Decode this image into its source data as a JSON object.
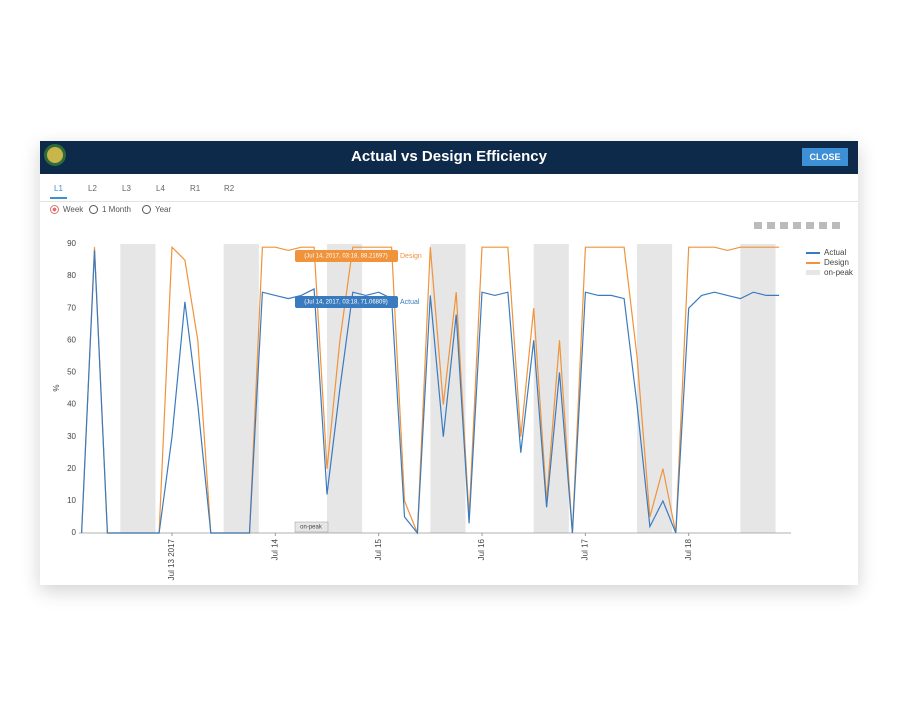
{
  "header": {
    "title": "Actual vs Design Efficiency",
    "close": "CLOSE"
  },
  "tabs": [
    "L1",
    "L2",
    "L3",
    "L4",
    "R1",
    "R2"
  ],
  "ranges": [
    "Week",
    "1 Month",
    "Year"
  ],
  "chart_data": {
    "type": "line",
    "y_label": "%",
    "x": [
      12.125,
      12.25,
      12.375,
      12.5,
      12.625,
      12.75,
      12.875,
      13.0,
      13.125,
      13.25,
      13.375,
      13.5,
      13.625,
      13.75,
      13.875,
      14.0,
      14.125,
      14.25,
      14.375,
      14.5,
      14.625,
      14.75,
      14.875,
      15.0,
      15.125,
      15.25,
      15.375,
      15.5,
      15.625,
      15.75,
      15.875,
      16.0,
      16.125,
      16.25,
      16.375,
      16.5,
      16.625,
      16.75,
      16.875,
      17.0,
      17.125,
      17.25,
      17.375,
      17.5,
      17.625,
      17.75,
      17.875,
      18.0,
      18.125,
      18.25,
      18.375,
      18.5,
      18.625,
      18.75,
      18.875
    ],
    "series": [
      {
        "name": "Actual",
        "color": "#3a7bbf",
        "values": [
          0,
          88,
          0,
          0,
          0,
          0,
          0,
          30,
          72,
          40,
          0,
          0,
          0,
          0,
          75,
          74,
          73,
          74,
          76,
          12,
          45,
          75,
          74,
          75,
          73,
          5,
          0,
          74,
          30,
          68,
          3,
          75,
          74,
          75,
          25,
          60,
          8,
          50,
          0,
          75,
          74,
          74,
          73,
          40,
          2,
          10,
          0,
          70,
          74,
          75,
          74,
          73,
          75,
          74,
          74
        ]
      },
      {
        "name": "Design",
        "color": "#f0933a",
        "values": [
          0,
          89,
          0,
          0,
          0,
          0,
          0,
          89,
          85,
          60,
          0,
          0,
          0,
          0,
          89,
          89,
          88,
          89,
          89,
          20,
          60,
          89,
          89,
          89,
          89,
          10,
          0,
          89,
          40,
          75,
          5,
          89,
          89,
          89,
          30,
          70,
          10,
          60,
          0,
          89,
          89,
          89,
          89,
          55,
          5,
          20,
          0,
          89,
          89,
          89,
          88,
          89,
          89,
          89,
          89
        ]
      }
    ],
    "on_peak_name": "on-peak",
    "on_peak_color": "#e6e6e6",
    "on_peak": [
      [
        12.5,
        12.84
      ],
      [
        13.5,
        13.84
      ],
      [
        14.5,
        14.84
      ],
      [
        15.5,
        15.84
      ],
      [
        16.5,
        16.84
      ],
      [
        17.5,
        17.84
      ],
      [
        18.5,
        18.84
      ]
    ],
    "xlim": [
      12.1,
      18.99
    ],
    "xticks": [
      {
        "value": 13,
        "label": "Jul 13 2017"
      },
      {
        "value": 14,
        "label": "Jul 14"
      },
      {
        "value": 15,
        "label": "Jul 15"
      },
      {
        "value": 16,
        "label": "Jul 16"
      },
      {
        "value": 17,
        "label": "Jul 17"
      },
      {
        "value": 18,
        "label": "Jul 18"
      }
    ],
    "ylim": [
      0,
      90
    ],
    "yticks": [
      0,
      10,
      20,
      30,
      40,
      50,
      60,
      70,
      80,
      90
    ],
    "grid": false,
    "legend": "top-right",
    "hover_labels": [
      {
        "text": "(Jul 14, 2017, 03:18, 88.21697)",
        "series": "Design"
      },
      {
        "text": "(Jul 14, 2017, 03:18, 71.06809)",
        "series": "Actual"
      }
    ],
    "peak_hover": "on-peak"
  }
}
